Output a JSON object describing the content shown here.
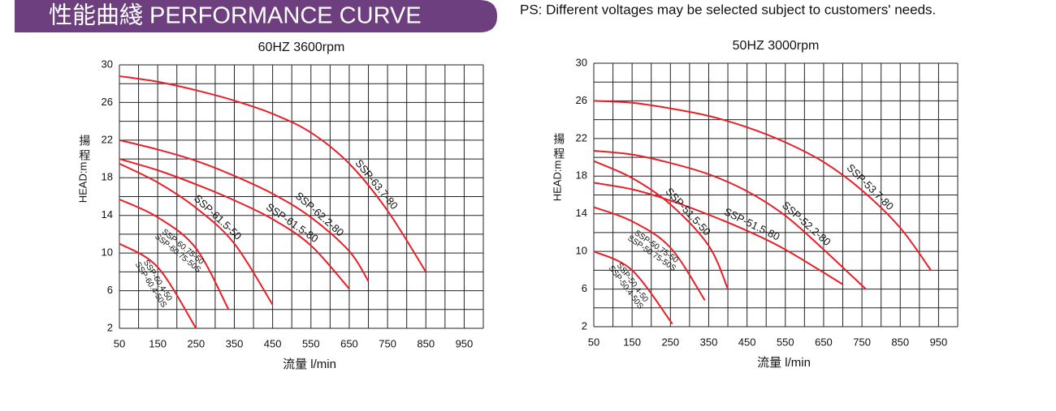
{
  "header": {
    "title": "性能曲綫 PERFORMANCE CURVE",
    "note": "PS: Different voltages may be selected subject to customers' needs."
  },
  "chart_data": [
    {
      "type": "line",
      "title": "60HZ 3600rpm",
      "ylabel": "HEAD:m",
      "ylabel_cn": "揚程",
      "xlabel": "流量 l/min",
      "color": "#e8202a",
      "xlim": [
        50,
        1000
      ],
      "ylim": [
        2,
        30
      ],
      "xticks": [
        50,
        150,
        250,
        350,
        450,
        550,
        650,
        750,
        850,
        950
      ],
      "yticks": [
        2,
        6,
        10,
        14,
        18,
        22,
        26,
        30
      ],
      "grid": true,
      "xgrid": [
        50,
        100,
        150,
        200,
        250,
        300,
        350,
        400,
        450,
        500,
        550,
        600,
        650,
        700,
        750,
        800,
        850,
        900,
        950,
        1000
      ],
      "ygrid": [
        2,
        4,
        6,
        8,
        10,
        12,
        14,
        16,
        18,
        20,
        22,
        24,
        26,
        28,
        30
      ],
      "series": [
        {
          "labels": [
            "SSP-63.7-80"
          ],
          "x": [
            50,
            150,
            250,
            350,
            450,
            550,
            650,
            750,
            850
          ],
          "values": [
            28.8,
            28.2,
            27.3,
            26.2,
            24.8,
            22.8,
            19.5,
            14.5,
            8
          ]
        },
        {
          "labels": [
            "SSP-62.2-80"
          ],
          "x": [
            50,
            150,
            250,
            350,
            450,
            550,
            650,
            700
          ],
          "values": [
            22,
            21,
            19.8,
            18.2,
            16.3,
            13.8,
            10.2,
            7
          ]
        },
        {
          "labels": [
            "SSP-61.5-80"
          ],
          "x": [
            50,
            150,
            250,
            350,
            450,
            550,
            650
          ],
          "values": [
            20,
            18.8,
            17.3,
            15.6,
            13.6,
            10.8,
            6.2
          ]
        },
        {
          "labels": [
            "SSP-61.5-50"
          ],
          "x": [
            50,
            150,
            250,
            350,
            450
          ],
          "values": [
            19.5,
            17.5,
            14.8,
            11,
            4.5
          ]
        },
        {
          "labels": [
            "SSP-60.75-50",
            "SSP-60.75-50S"
          ],
          "x": [
            50,
            150,
            250,
            335
          ],
          "values": [
            15.7,
            13.8,
            10.5,
            4
          ]
        },
        {
          "labels": [
            "SSP-60.4-50",
            "SSP-60.4-50S"
          ],
          "x": [
            50,
            150,
            250
          ],
          "values": [
            11,
            8.5,
            2
          ]
        }
      ]
    },
    {
      "type": "line",
      "title": "50HZ 3000rpm",
      "ylabel": "HEAD:m",
      "ylabel_cn": "揚程",
      "xlabel": "流量 l/min",
      "color": "#e8202a",
      "xlim": [
        50,
        1000
      ],
      "ylim": [
        2,
        30
      ],
      "xticks": [
        50,
        150,
        250,
        350,
        450,
        550,
        650,
        750,
        850,
        950
      ],
      "yticks": [
        2,
        6,
        10,
        14,
        18,
        22,
        26,
        30
      ],
      "grid": true,
      "xgrid": [
        50,
        100,
        150,
        200,
        250,
        300,
        350,
        400,
        450,
        500,
        550,
        600,
        650,
        700,
        750,
        800,
        850,
        900,
        950,
        1000
      ],
      "ygrid": [
        2,
        4,
        6,
        8,
        10,
        12,
        14,
        16,
        18,
        20,
        22,
        24,
        26,
        28,
        30
      ],
      "series": [
        {
          "labels": [
            "SSP-53.7-80"
          ],
          "x": [
            50,
            150,
            250,
            350,
            450,
            550,
            650,
            750,
            850,
            930
          ],
          "values": [
            26,
            25.8,
            25.2,
            24.4,
            23.2,
            21.6,
            19.5,
            16.5,
            12.5,
            8
          ]
        },
        {
          "labels": [
            "SSP-52.2-80"
          ],
          "x": [
            50,
            150,
            250,
            350,
            450,
            550,
            650,
            760
          ],
          "values": [
            20.7,
            20.3,
            19.4,
            18.2,
            16.4,
            13.8,
            10.2,
            6
          ]
        },
        {
          "labels": [
            "SSP-51.5-80"
          ],
          "x": [
            50,
            150,
            250,
            350,
            450,
            550,
            700
          ],
          "values": [
            17.3,
            16.6,
            15.4,
            13.9,
            12.2,
            10.2,
            6.5
          ]
        },
        {
          "labels": [
            "SSP-51.5-50"
          ],
          "x": [
            50,
            150,
            250,
            350,
            400
          ],
          "values": [
            19.6,
            17.8,
            15,
            10.6,
            6
          ]
        },
        {
          "labels": [
            "SSP-50.75-50",
            "SSP-50.75-50S"
          ],
          "x": [
            50,
            150,
            250,
            340
          ],
          "values": [
            14.7,
            13.2,
            10.4,
            4.8
          ]
        },
        {
          "labels": [
            "SSP-50.4-50",
            "SSP-50.4-50S"
          ],
          "x": [
            50,
            150,
            255
          ],
          "values": [
            10,
            8,
            2.3
          ]
        }
      ]
    }
  ]
}
